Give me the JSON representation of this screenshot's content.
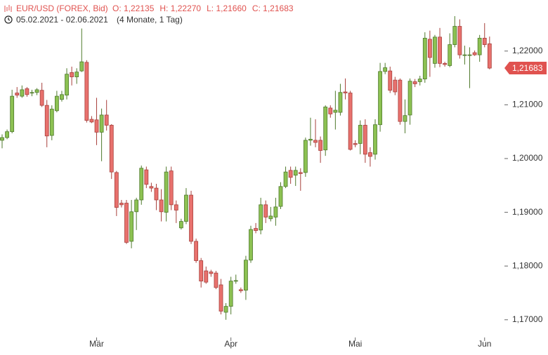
{
  "chart_data": {
    "type": "candlestick",
    "header": {
      "symbol": "EUR/USD (FOREX, Bid)",
      "ohlc": [
        "O: 1,22135",
        "H: 1,22270",
        "L: 1,21660",
        "C: 1,21683"
      ],
      "range": "05.02.2021 - 02.06.2021",
      "duration": "(4 Monate, 1 Tag)"
    },
    "categories": [
      null,
      null,
      null,
      null,
      null,
      null,
      null,
      null,
      null,
      null,
      null,
      null,
      null,
      null,
      null,
      null,
      null,
      null,
      null,
      "Mär",
      null,
      null,
      null,
      null,
      null,
      null,
      null,
      null,
      null,
      null,
      null,
      null,
      null,
      null,
      null,
      null,
      null,
      null,
      null,
      null,
      null,
      null,
      null,
      null,
      null,
      null,
      "Apr",
      null,
      null,
      null,
      null,
      null,
      null,
      null,
      null,
      null,
      null,
      null,
      null,
      null,
      null,
      null,
      null,
      null,
      null,
      null,
      null,
      null,
      null,
      null,
      null,
      "Mai",
      null,
      null,
      null,
      null,
      null,
      null,
      null,
      null,
      null,
      null,
      null,
      null,
      null,
      null,
      null,
      null,
      null,
      null,
      null,
      null,
      null,
      null,
      null,
      null,
      null,
      "Jun",
      null
    ],
    "open": [
      1.2034,
      1.2039,
      1.205,
      1.2122,
      1.2116,
      1.213,
      1.2122,
      1.2123,
      1.2127,
      1.2099,
      1.2043,
      1.2089,
      1.211,
      1.2118,
      1.216,
      1.2152,
      1.2163,
      1.2179,
      1.2073,
      1.2072,
      1.2049,
      1.2081,
      1.2062,
      1.1974,
      1.1917,
      1.1917,
      1.1846,
      1.1901,
      1.1923,
      1.1979,
      1.1948,
      1.1945,
      1.1923,
      1.19,
      1.1977,
      1.1914,
      1.1871,
      1.1883,
      1.1932,
      1.1846,
      1.181,
      1.1791,
      1.1789,
      1.1787,
      1.1765,
      1.1714,
      1.1725,
      1.1772,
      1.1756,
      1.1755,
      1.1811,
      1.187,
      1.1867,
      1.1914,
      1.1888,
      1.1891,
      1.1911,
      1.1948,
      1.1978,
      1.1969,
      1.1974,
      1.1974,
      1.2034,
      1.2034,
      1.2034,
      1.2016,
      1.2094,
      1.2086,
      1.2086,
      1.2124,
      1.2122,
      1.2028,
      1.2028,
      1.2062,
      1.2011,
      1.2008,
      1.2063,
      1.2162,
      1.2163,
      1.2146,
      1.2146,
      1.2069,
      1.2081,
      1.2143,
      1.2143,
      1.2148,
      1.2222,
      1.2177,
      1.2226,
      1.2177,
      1.2173,
      1.2212,
      1.2246,
      1.2193,
      1.2193,
      1.2197,
      1.2193,
      1.2224,
      1.22135
    ],
    "high": [
      1.2045,
      1.2054,
      1.2128,
      1.2133,
      1.2136,
      1.2133,
      1.2128,
      1.2131,
      1.2141,
      1.2109,
      1.2099,
      1.2126,
      1.2126,
      1.2168,
      1.2171,
      1.2168,
      1.2242,
      1.2183,
      1.2079,
      1.2113,
      1.2093,
      1.2109,
      1.2064,
      1.1977,
      1.1923,
      1.1923,
      1.1923,
      1.1927,
      1.1987,
      1.1985,
      1.1955,
      1.1953,
      1.1943,
      1.1985,
      1.1985,
      1.1922,
      1.1888,
      1.1945,
      1.194,
      1.1851,
      1.1815,
      1.1799,
      1.1793,
      1.1791,
      1.1776,
      1.1731,
      1.178,
      1.1784,
      1.176,
      1.1819,
      1.1875,
      1.188,
      1.1927,
      1.1922,
      1.191,
      1.1927,
      1.1956,
      1.1985,
      1.1985,
      1.1985,
      1.1982,
      1.2039,
      1.2076,
      1.2073,
      1.2041,
      1.2099,
      1.2099,
      1.2126,
      1.2139,
      1.2149,
      1.2126,
      1.2034,
      1.2071,
      1.2073,
      1.2021,
      1.2073,
      1.2178,
      1.2178,
      1.2171,
      1.2152,
      1.2149,
      1.211,
      1.2149,
      1.2148,
      1.2154,
      1.2235,
      1.2238,
      1.223,
      1.2243,
      1.218,
      1.2233,
      1.2265,
      1.2259,
      1.221,
      1.2207,
      1.2201,
      1.223,
      1.2252,
      1.2227
    ],
    "low": [
      1.2019,
      1.2036,
      1.2047,
      1.2113,
      1.2113,
      1.2115,
      1.2116,
      1.2118,
      1.2096,
      1.2021,
      1.2034,
      1.2086,
      1.2106,
      1.211,
      1.2136,
      1.2139,
      1.2161,
      1.2067,
      1.2066,
      1.2025,
      1.1995,
      1.2052,
      1.1962,
      1.1893,
      1.1909,
      1.1841,
      1.1833,
      1.1867,
      1.1914,
      1.1945,
      1.1938,
      1.1904,
      1.1883,
      1.1883,
      1.1904,
      1.188,
      1.1868,
      1.1878,
      1.1841,
      1.1806,
      1.176,
      1.1767,
      1.178,
      1.1757,
      1.171,
      1.17,
      1.171,
      1.1767,
      1.175,
      1.1737,
      1.1806,
      1.1861,
      1.1859,
      1.188,
      1.1883,
      1.1875,
      1.1906,
      1.1945,
      1.1953,
      1.1949,
      1.194,
      1.1966,
      1.2024,
      1.2021,
      1.1992,
      1.2005,
      1.2076,
      1.2054,
      1.208,
      1.211,
      1.2015,
      1.2021,
      1.2008,
      1.1992,
      1.1985,
      1.1998,
      1.205,
      1.2157,
      1.2122,
      1.2118,
      1.2063,
      1.2047,
      1.2063,
      1.2133,
      1.2136,
      1.2141,
      1.2152,
      1.2169,
      1.217,
      1.2171,
      1.217,
      1.2207,
      1.2186,
      1.2175,
      1.2131,
      1.2191,
      1.218,
      1.2207,
      1.2166
    ],
    "close": [
      1.2039,
      1.205,
      1.2116,
      1.2118,
      1.2128,
      1.2119,
      1.2123,
      1.2128,
      1.2099,
      1.2042,
      1.2092,
      1.2116,
      1.2119,
      1.2157,
      1.2152,
      1.2161,
      1.218,
      1.2071,
      1.2068,
      1.2049,
      1.2081,
      1.2062,
      1.1975,
      1.1909,
      1.1914,
      1.1844,
      1.1901,
      1.1923,
      1.1982,
      1.1952,
      1.1945,
      1.1923,
      1.1901,
      1.1975,
      1.1914,
      1.1904,
      1.1883,
      1.1932,
      1.1846,
      1.181,
      1.1772,
      1.177,
      1.1786,
      1.176,
      1.1716,
      1.1725,
      1.1772,
      1.1773,
      1.1754,
      1.1811,
      1.1868,
      1.1866,
      1.1914,
      1.1891,
      1.1893,
      1.191,
      1.1948,
      1.1975,
      1.1965,
      1.1978,
      1.1972,
      1.2034,
      1.2036,
      1.203,
      1.2015,
      1.2096,
      1.2083,
      1.209,
      1.2123,
      1.2122,
      1.2017,
      1.2026,
      1.2062,
      1.2008,
      1.2004,
      1.2063,
      1.2162,
      1.2169,
      1.2127,
      1.2124,
      1.2069,
      1.208,
      1.2144,
      1.2139,
      1.2148,
      1.2224,
      1.2188,
      1.2226,
      1.2177,
      1.2175,
      1.2212,
      1.2246,
      1.2193,
      1.2193,
      1.2193,
      1.2193,
      1.2224,
      1.2212,
      1.21683
    ],
    "up_color": "#8cc152",
    "down_color": "#e8716d",
    "last_price": {
      "value": 1.21683,
      "label": "1,21683"
    },
    "last_price_color": "#e0524f",
    "ylim": [
      1.1671,
      1.2295
    ],
    "yticks": [
      {
        "value": 1.17,
        "label": "1,17000"
      },
      {
        "value": 1.18,
        "label": "1,18000"
      },
      {
        "value": 1.19,
        "label": "1,19000"
      },
      {
        "value": 1.2,
        "label": "1,20000"
      },
      {
        "value": 1.21,
        "label": "1,21000"
      },
      {
        "value": 1.22,
        "label": "1,22000"
      }
    ],
    "grid": false
  }
}
